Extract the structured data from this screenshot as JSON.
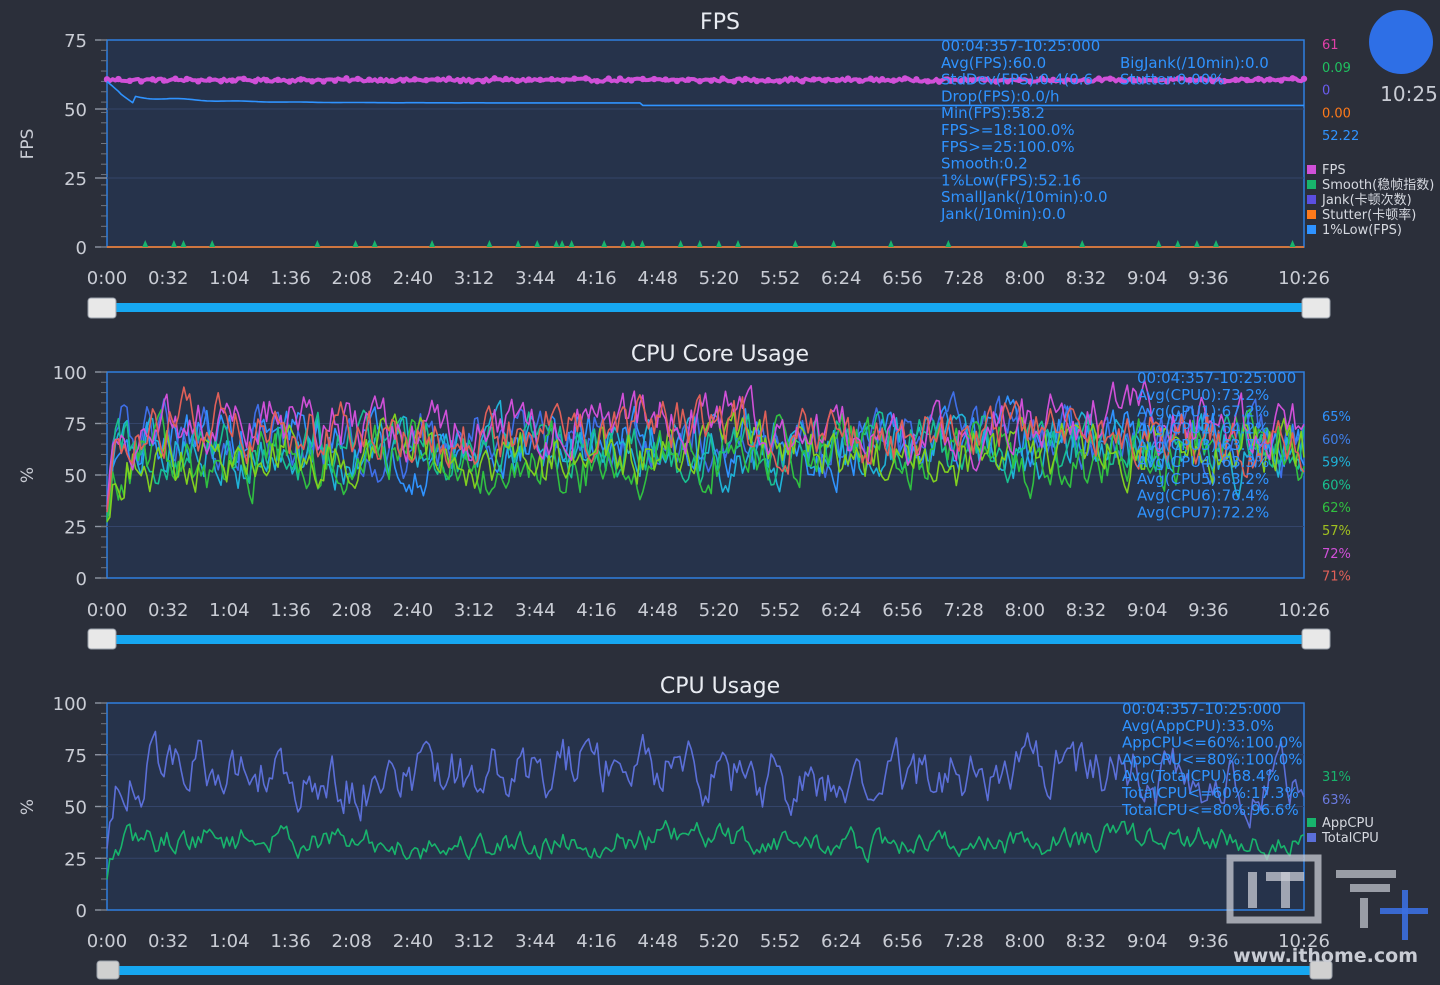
{
  "clock": {
    "time": "10:25"
  },
  "watermark": {
    "text": "www.ithome.com"
  },
  "x_ticks": [
    "0:00",
    "0:32",
    "1:04",
    "1:36",
    "2:08",
    "2:40",
    "3:12",
    "3:44",
    "4:16",
    "4:48",
    "5:20",
    "5:52",
    "6:24",
    "6:56",
    "7:28",
    "8:00",
    "8:32",
    "9:04",
    "9:36",
    "10:26"
  ],
  "chart_data": [
    {
      "id": "fps",
      "type": "line",
      "title": "FPS",
      "ylabel": "FPS",
      "ylim": [
        0,
        75
      ],
      "y_ticks": [
        "0",
        "25",
        "50",
        "75"
      ],
      "xlim_seconds": [
        0,
        626
      ],
      "series": [
        {
          "name": "FPS",
          "color": "#d050d8",
          "pattern": "fps",
          "base": 60.5
        },
        {
          "name": "Smooth(稳帧指数)",
          "color": "#18b46c",
          "pattern": "flat",
          "base": 0
        },
        {
          "name": "Jank(卡顿次数)",
          "color": "#5b4ee0",
          "pattern": "flat",
          "base": 0
        },
        {
          "name": "Stutter(卡顿率)",
          "color": "#ff7a1a",
          "pattern": "flat",
          "base": 0
        },
        {
          "name": "1%Low(FPS)",
          "color": "#2f93ff",
          "pattern": "decay",
          "base": 52.2
        }
      ],
      "right_values": [
        {
          "text": "61",
          "color": "#e040a8"
        },
        {
          "text": "0.09",
          "color": "#20c060"
        },
        {
          "text": "0",
          "color": "#6a5cf0"
        },
        {
          "text": "0.00",
          "color": "#ff7a1a"
        },
        {
          "text": "52.22",
          "color": "#2f93ff"
        }
      ],
      "stats": [
        "00:04:357-10:25:000",
        "Avg(FPS):60.0",
        "StdDev(FPS):0.4(0.6",
        "Drop(FPS):0.0/h",
        "Min(FPS):58.2",
        "FPS>=18:100.0%",
        "FPS>=25:100.0%",
        "Smooth:0.2",
        "1%Low(FPS):52.16",
        "SmallJank(/10min):0.0",
        "Jank(/10min):0.0"
      ],
      "stats_right": [
        "BigJank(/10min):0.0",
        "Stutter:0.00%"
      ],
      "jank_markers_seconds": [
        20,
        35,
        40,
        55,
        110,
        130,
        140,
        170,
        200,
        215,
        225,
        235,
        238,
        243,
        260,
        270,
        275,
        280,
        300,
        310,
        320,
        330,
        360,
        380,
        410,
        440,
        480,
        510,
        550,
        560,
        570,
        580,
        620
      ]
    },
    {
      "id": "cpu-core",
      "type": "line",
      "title": "CPU Core Usage",
      "ylabel": "%",
      "ylim": [
        0,
        100
      ],
      "y_ticks": [
        "0",
        "25",
        "50",
        "75",
        "100"
      ],
      "xlim_seconds": [
        0,
        626
      ],
      "series": [
        {
          "name": "CPU0",
          "color": "#2f93ff",
          "pattern": "noisy",
          "base": 65,
          "amp": 12
        },
        {
          "name": "CPU1",
          "color": "#3f6fe8",
          "pattern": "noisy",
          "base": 68,
          "amp": 12
        },
        {
          "name": "CPU2",
          "color": "#1fb3d8",
          "pattern": "noisy",
          "base": 62,
          "amp": 12
        },
        {
          "name": "CPU3",
          "color": "#18c090",
          "pattern": "noisy",
          "base": 63,
          "amp": 12
        },
        {
          "name": "CPU4",
          "color": "#30c040",
          "pattern": "noisy",
          "base": 60,
          "amp": 13
        },
        {
          "name": "CPU5",
          "color": "#80d020",
          "pattern": "noisy",
          "base": 61,
          "amp": 12
        },
        {
          "name": "CPU6",
          "color": "#d050d8",
          "pattern": "noisy",
          "base": 74,
          "amp": 12
        },
        {
          "name": "CPU7",
          "color": "#e06058",
          "pattern": "noisy",
          "base": 71,
          "amp": 12
        }
      ],
      "right_values": [
        {
          "text": "65%",
          "color": "#2f93ff"
        },
        {
          "text": "60%",
          "color": "#3f7fe8"
        },
        {
          "text": "59%",
          "color": "#1fb3d8"
        },
        {
          "text": "60%",
          "color": "#18c090"
        },
        {
          "text": "62%",
          "color": "#30c040"
        },
        {
          "text": "57%",
          "color": "#a0c020"
        },
        {
          "text": "72%",
          "color": "#d050d8"
        },
        {
          "text": "71%",
          "color": "#e06058"
        }
      ],
      "stats": [
        "00:04:357-10:25:000",
        "Avg(CPU0):73.2%",
        "Avg(CPU1):67.2%",
        "Avg(CPU2):64.2%",
        "Avg(CPU3):63.7%",
        "Avg(CPU4):63.3%",
        "Avg(CPU5):63.2%",
        "Avg(CPU6):76.4%",
        "Avg(CPU7):72.2%"
      ],
      "stats_right": []
    },
    {
      "id": "cpu",
      "type": "line",
      "title": "CPU Usage",
      "ylabel": "%",
      "ylim": [
        0,
        100
      ],
      "y_ticks": [
        "0",
        "25",
        "50",
        "75",
        "100"
      ],
      "xlim_seconds": [
        0,
        626
      ],
      "series": [
        {
          "name": "AppCPU",
          "color": "#18b46c",
          "pattern": "noisy",
          "base": 33,
          "amp": 6
        },
        {
          "name": "TotalCPU",
          "color": "#5b6fd8",
          "pattern": "noisy",
          "base": 66,
          "amp": 12
        }
      ],
      "right_values": [
        {
          "text": "31%",
          "color": "#18b46c"
        },
        {
          "text": "63%",
          "color": "#6a7ae0"
        }
      ],
      "stats": [
        "00:04:357-10:25:000",
        "Avg(AppCPU):33.0%",
        "AppCPU<=60%:100.0%",
        "AppCPU<=80%:100.0%",
        "Avg(TotalCPU):68.4%",
        "TotalCPU<=60%:17.3%",
        "TotalCPU<=80%:96.6%"
      ],
      "stats_right": []
    }
  ]
}
